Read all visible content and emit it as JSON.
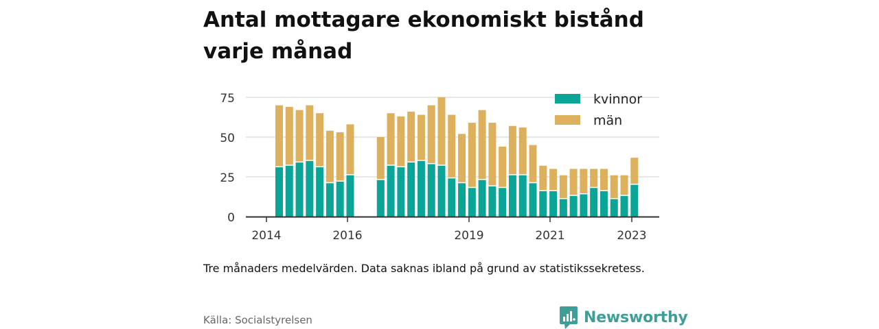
{
  "title": "Antal mottagare ekonomiskt bistånd varje månad",
  "note": "Tre månaders medelvärden. Data saknas ibland på grund av statistikssekretess.",
  "source": "Källa: Socialstyrelsen",
  "brand": {
    "name": "Newsworthy",
    "icon": "bar-chart-speech-bubble-icon",
    "color": "#3e9e98"
  },
  "colors": {
    "kvinnor": "#0aa596",
    "man": "#ddb05e",
    "grid": "#e0e0e0",
    "axis": "#333333"
  },
  "chart_data": {
    "type": "bar",
    "stacked": true,
    "x_ticks": [
      "2014",
      "2016",
      "2019",
      "2021",
      "2023"
    ],
    "y_ticks": [
      0,
      25,
      50,
      75
    ],
    "ylim": [
      0,
      80
    ],
    "legend_position": "top-right",
    "grid": true,
    "categories": [
      "2014 Q3",
      "2014 Q4",
      "2015 Q1",
      "2015 Q2",
      "2015 Q3",
      "2015 Q4",
      "2016 Q1",
      "2016 Q2",
      "2016 Q3",
      "2016 Q4",
      "2017 Q1",
      "2017 Q2",
      "2017 Q3",
      "2017 Q4",
      "2018 Q1",
      "2018 Q2",
      "2018 Q3",
      "2018 Q4",
      "2019 Q1",
      "2019 Q2",
      "2019 Q3",
      "2019 Q4",
      "2020 Q1",
      "2020 Q2",
      "2020 Q3",
      "2020 Q4",
      "2021 Q1",
      "2021 Q2",
      "2021 Q3",
      "2021 Q4",
      "2022 Q1",
      "2022 Q2",
      "2022 Q3",
      "2022 Q4",
      "2023 Q1",
      "2023 Q2",
      "2023 Q3"
    ],
    "series": [
      {
        "name": "kvinnor",
        "values": [
          31,
          32,
          34,
          35,
          31,
          21,
          22,
          26,
          null,
          null,
          23,
          32,
          31,
          34,
          35,
          33,
          32,
          24,
          21,
          18,
          23,
          19,
          18,
          26,
          26,
          21,
          16,
          16,
          11,
          13,
          14,
          18,
          16,
          11,
          13,
          20,
          null
        ]
      },
      {
        "name": "män",
        "values": [
          39,
          37,
          33,
          35,
          34,
          33,
          31,
          32,
          null,
          null,
          27,
          33,
          32,
          32,
          29,
          37,
          43,
          40,
          31,
          41,
          44,
          40,
          26,
          31,
          30,
          24,
          16,
          14,
          15,
          17,
          16,
          12,
          14,
          15,
          13,
          17,
          null
        ]
      }
    ]
  }
}
